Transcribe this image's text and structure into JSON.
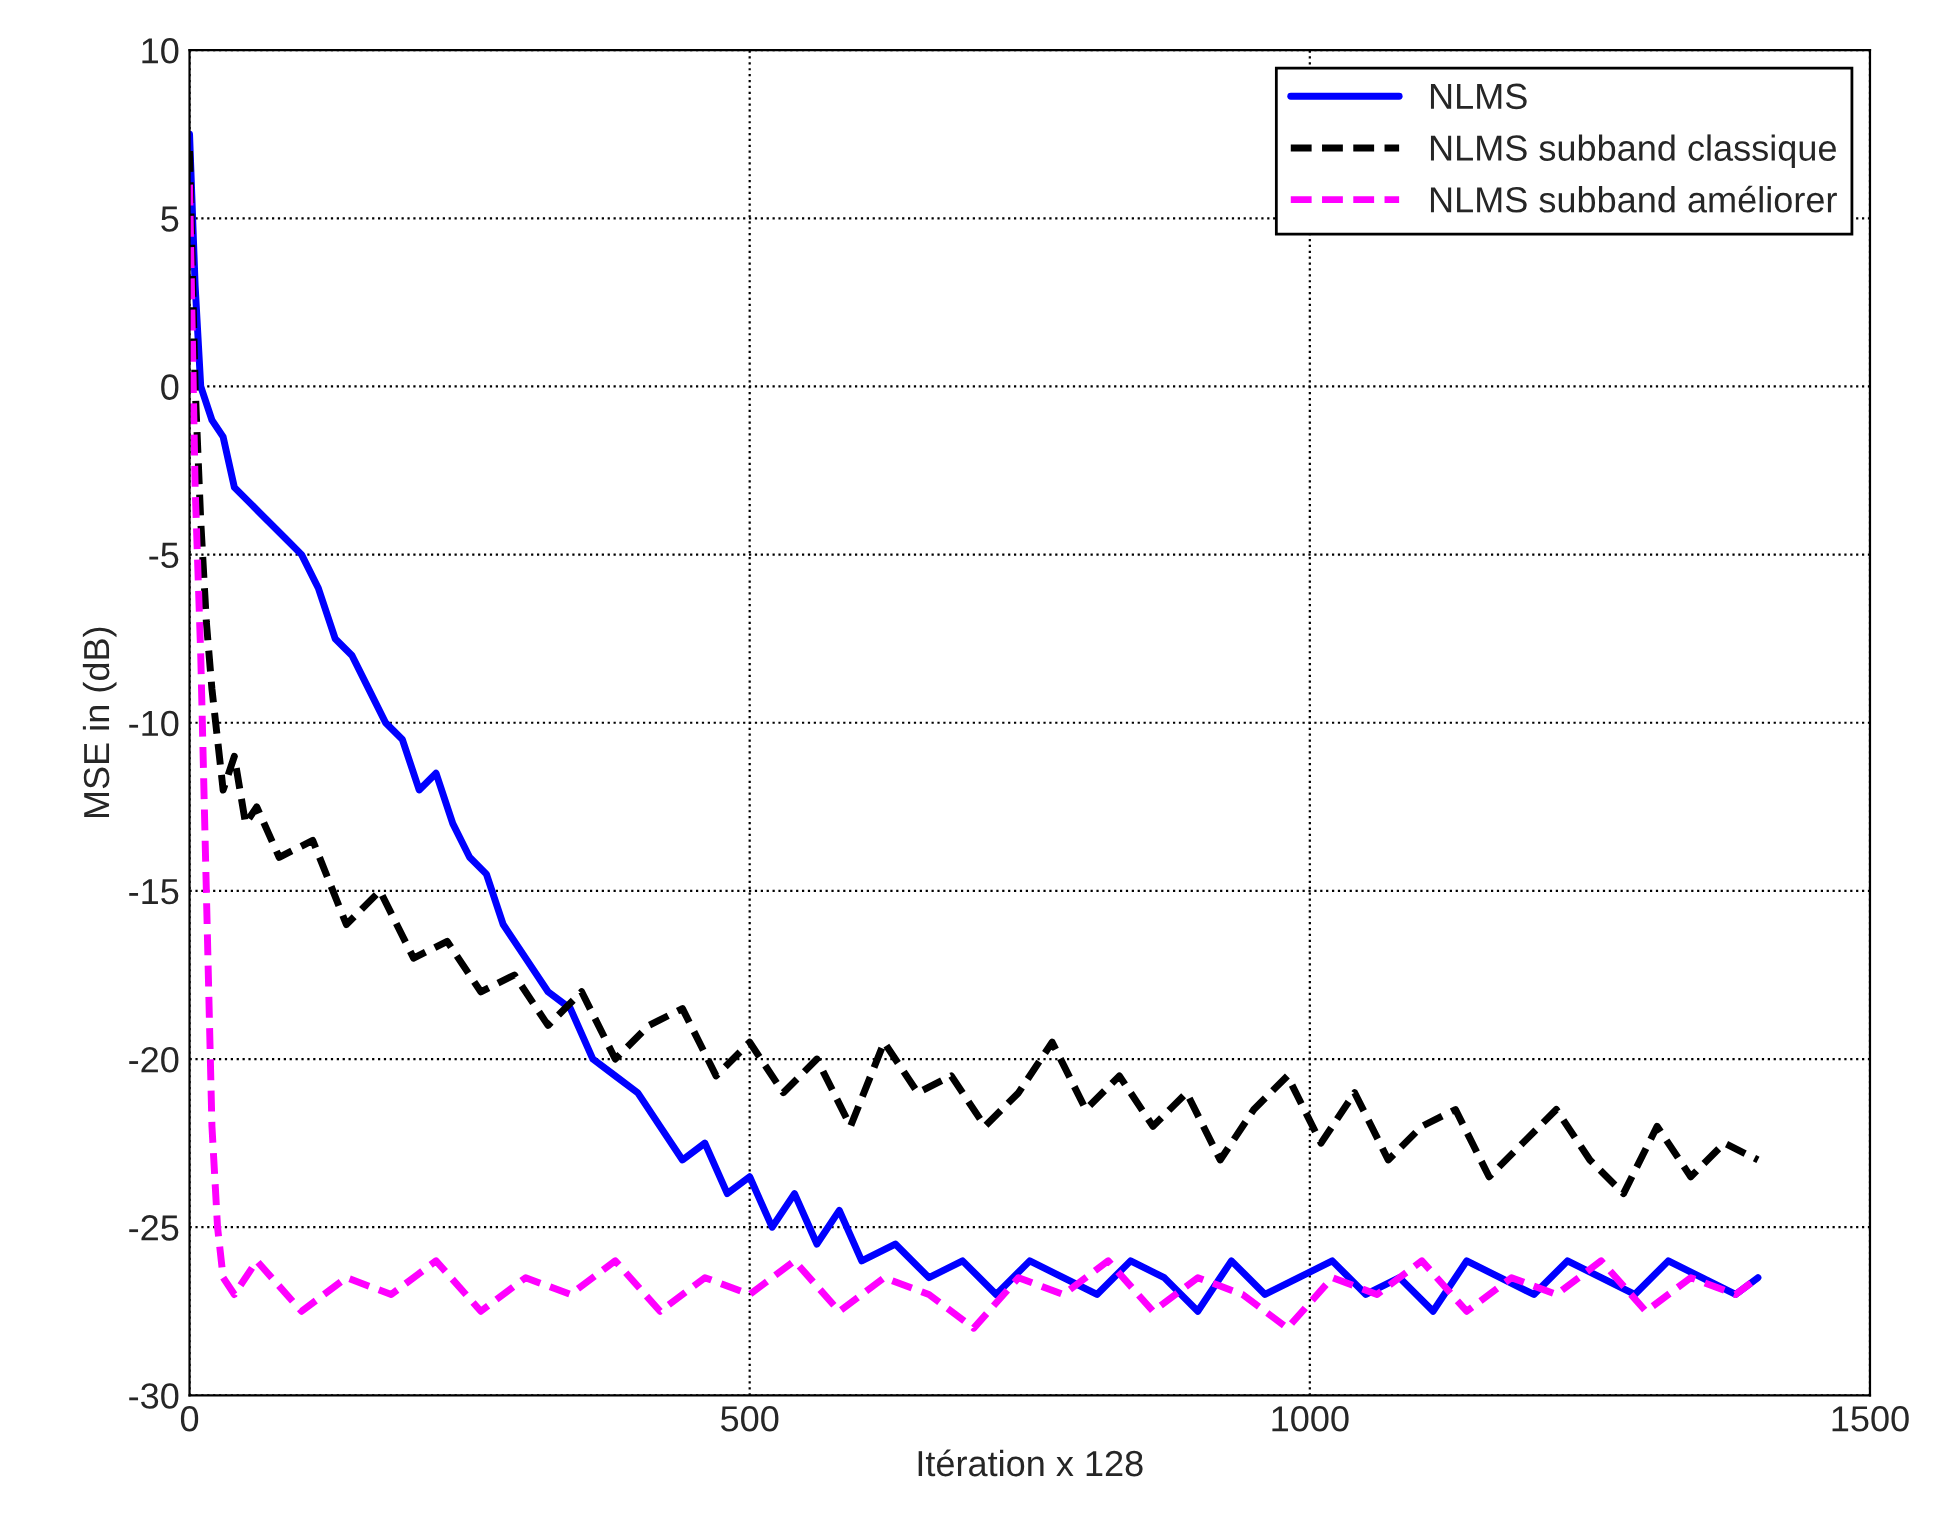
{
  "chart_data": {
    "type": "line",
    "xlabel": "Itération x 128",
    "ylabel": "MSE in (dB)",
    "xlim": [
      0,
      1500
    ],
    "xticks": [
      0,
      500,
      1000,
      1500
    ],
    "ylim": [
      -30,
      10
    ],
    "yticks": [
      -30,
      -25,
      -20,
      -15,
      -10,
      -5,
      0,
      5,
      10
    ],
    "grid": true,
    "legend": "top right",
    "marker": "none",
    "series": [
      {
        "name": "NLMS",
        "color": "#0000ff",
        "line_style": "solid",
        "x": [
          0,
          5,
          10,
          20,
          30,
          40,
          55,
          70,
          85,
          100,
          115,
          130,
          145,
          160,
          175,
          190,
          205,
          220,
          235,
          250,
          265,
          280,
          300,
          320,
          340,
          360,
          380,
          400,
          420,
          440,
          460,
          480,
          500,
          520,
          540,
          560,
          580,
          600,
          630,
          660,
          690,
          720,
          750,
          780,
          810,
          840,
          870,
          900,
          930,
          960,
          990,
          1020,
          1050,
          1080,
          1110,
          1140,
          1170,
          1200,
          1230,
          1260,
          1290,
          1320,
          1350,
          1380,
          1400
        ],
        "values": [
          7.5,
          3,
          0,
          -1,
          -1.5,
          -3,
          -3.5,
          -4,
          -4.5,
          -5,
          -6,
          -7.5,
          -8,
          -9,
          -10,
          -10.5,
          -12,
          -11.5,
          -13,
          -14,
          -14.5,
          -16,
          -17,
          -18,
          -18.5,
          -20,
          -20.5,
          -21,
          -22,
          -23,
          -22.5,
          -24,
          -23.5,
          -25,
          -24,
          -25.5,
          -24.5,
          -26,
          -25.5,
          -26.5,
          -26,
          -27,
          -26,
          -26.5,
          -27,
          -26,
          -26.5,
          -27.5,
          -26,
          -27,
          -26.5,
          -26,
          -27,
          -26.5,
          -27.5,
          -26,
          -26.5,
          -27,
          -26,
          -26.5,
          -27,
          -26,
          -26.5,
          -27,
          -26.5
        ]
      },
      {
        "name": "NLMS subband classique",
        "color": "#000000",
        "line_style": "dashed",
        "x": [
          0,
          5,
          10,
          15,
          20,
          30,
          40,
          50,
          60,
          80,
          110,
          140,
          170,
          200,
          230,
          260,
          290,
          320,
          350,
          380,
          410,
          440,
          470,
          500,
          530,
          560,
          590,
          620,
          650,
          680,
          710,
          740,
          770,
          800,
          830,
          860,
          890,
          920,
          950,
          980,
          1010,
          1040,
          1070,
          1100,
          1130,
          1160,
          1190,
          1220,
          1250,
          1280,
          1310,
          1340,
          1370,
          1400
        ],
        "values": [
          7,
          0,
          -4,
          -7,
          -9,
          -12,
          -11,
          -13,
          -12.5,
          -14,
          -13.5,
          -16,
          -15,
          -17,
          -16.5,
          -18,
          -17.5,
          -19,
          -18,
          -20,
          -19,
          -18.5,
          -20.5,
          -19.5,
          -21,
          -20,
          -22,
          -19.5,
          -21,
          -20.5,
          -22,
          -21,
          -19.5,
          -21.5,
          -20.5,
          -22,
          -21,
          -23,
          -21.5,
          -20.5,
          -22.5,
          -21,
          -23,
          -22,
          -21.5,
          -23.5,
          -22.5,
          -21.5,
          -23,
          -24,
          -22,
          -23.5,
          -22.5,
          -23
        ]
      },
      {
        "name": "NLMS subband améliorer",
        "color": "#ff00ff",
        "line_style": "dashed",
        "x": [
          0,
          5,
          10,
          15,
          20,
          25,
          30,
          40,
          60,
          100,
          140,
          180,
          220,
          260,
          300,
          340,
          380,
          420,
          460,
          500,
          540,
          580,
          620,
          660,
          700,
          740,
          780,
          820,
          860,
          900,
          940,
          980,
          1020,
          1060,
          1100,
          1140,
          1180,
          1220,
          1260,
          1300,
          1340,
          1380,
          1400
        ],
        "values": [
          6,
          -3,
          -8,
          -15,
          -22,
          -25,
          -26.5,
          -27,
          -26,
          -27.5,
          -26.5,
          -27,
          -26,
          -27.5,
          -26.5,
          -27,
          -26,
          -27.5,
          -26.5,
          -27,
          -26,
          -27.5,
          -26.5,
          -27,
          -28,
          -26.5,
          -27,
          -26,
          -27.5,
          -26.5,
          -27,
          -28,
          -26.5,
          -27,
          -26,
          -27.5,
          -26.5,
          -27,
          -26,
          -27.5,
          -26.5,
          -27,
          -26.5
        ]
      }
    ]
  }
}
